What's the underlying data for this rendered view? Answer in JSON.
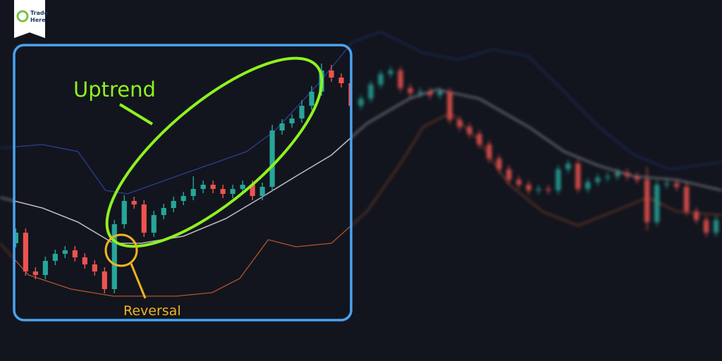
{
  "logo": {
    "lines": [
      "Trade",
      "Here"
    ]
  },
  "chart_data": {
    "type": "candlestick",
    "up_color": "#26a69a",
    "down_color": "#ef5350",
    "xlim": [
      -0.6,
      72.6
    ],
    "ylim": [
      0,
      512
    ],
    "annotations": [
      "Uptrend",
      "Reversal"
    ],
    "open": [
      162,
      167,
      182,
      127,
      122,
      142,
      152,
      157,
      147,
      137,
      127,
      102,
      194,
      227,
      222,
      182,
      207,
      217,
      227,
      234,
      244,
      250,
      244,
      237,
      244,
      250,
      234,
      247,
      327,
      337,
      344,
      362,
      382,
      412,
      402,
      394,
      362,
      372,
      392,
      407,
      412,
      387,
      380,
      382,
      377,
      382,
      342,
      332,
      322,
      307,
      287,
      272,
      257,
      250,
      242,
      244,
      242,
      272,
      280,
      244,
      254,
      260,
      262,
      267,
      262,
      257,
      197,
      250,
      252,
      247,
      212,
      200,
      182
    ],
    "close": [
      167,
      182,
      127,
      122,
      142,
      152,
      157,
      147,
      137,
      127,
      102,
      194,
      227,
      222,
      182,
      207,
      217,
      227,
      234,
      244,
      250,
      244,
      237,
      244,
      250,
      234,
      247,
      327,
      337,
      344,
      362,
      382,
      412,
      402,
      394,
      362,
      372,
      392,
      407,
      412,
      387,
      380,
      382,
      377,
      382,
      342,
      332,
      322,
      307,
      287,
      272,
      257,
      250,
      242,
      244,
      242,
      272,
      280,
      244,
      254,
      260,
      262,
      267,
      262,
      257,
      197,
      250,
      252,
      247,
      212,
      200,
      182,
      200
    ],
    "high": [
      173,
      188,
      188,
      133,
      148,
      158,
      163,
      163,
      153,
      143,
      133,
      200,
      235,
      233,
      228,
      213,
      223,
      233,
      240,
      262,
      256,
      256,
      250,
      250,
      256,
      256,
      253,
      335,
      343,
      350,
      370,
      390,
      422,
      420,
      408,
      400,
      378,
      398,
      413,
      418,
      418,
      393,
      388,
      388,
      388,
      388,
      348,
      338,
      328,
      313,
      293,
      278,
      263,
      256,
      250,
      250,
      278,
      286,
      286,
      260,
      266,
      268,
      273,
      273,
      268,
      275,
      256,
      258,
      258,
      253,
      218,
      206,
      206
    ],
    "low": [
      156,
      161,
      121,
      116,
      116,
      136,
      146,
      141,
      131,
      121,
      96,
      96,
      188,
      216,
      176,
      176,
      201,
      211,
      221,
      228,
      238,
      238,
      231,
      231,
      238,
      228,
      228,
      241,
      321,
      331,
      338,
      356,
      376,
      396,
      388,
      356,
      356,
      366,
      386,
      401,
      381,
      374,
      374,
      371,
      371,
      336,
      326,
      316,
      301,
      281,
      266,
      251,
      244,
      236,
      236,
      236,
      236,
      266,
      238,
      238,
      248,
      254,
      256,
      256,
      251,
      185,
      191,
      244,
      241,
      206,
      194,
      176,
      176
    ],
    "lines": [
      {
        "color": "#2c3f8c",
        "x": [
          -0.6,
          3.7,
          7.3,
          10.1,
          12.3,
          17.3,
          24.4,
          27.3,
          31.6,
          35.1,
          38,
          42.3,
          45.9,
          49.4,
          53,
          56.6,
          60.1,
          63.7,
          67.3,
          72.6
        ],
        "values": [
          302,
          307,
          297,
          242,
          237,
          262,
          297,
          327,
          392,
          452,
          467,
          437,
          427,
          442,
          432,
          382,
          332,
          292,
          272,
          282
        ]
      },
      {
        "color": "#b9b9c0",
        "x": [
          -0.6,
          3.7,
          7.3,
          10.9,
          13.7,
          18,
          22.3,
          25.9,
          29.4,
          33,
          36.6,
          40.9,
          43.7,
          48,
          53,
          56.6,
          60.1,
          63.7,
          68,
          72.6
        ],
        "values": [
          232,
          217,
          197,
          167,
          167,
          177,
          202,
          232,
          262,
          292,
          337,
          372,
          385,
          372,
          332,
          297,
          277,
          262,
          257,
          242
        ]
      },
      {
        "color": "#b3532c",
        "x": [
          -0.6,
          2.3,
          6.6,
          10.9,
          13.7,
          17.3,
          20.9,
          23.7,
          26.6,
          29.4,
          33,
          36.6,
          40.1,
          42.3,
          45.1,
          48,
          50.9,
          54.4,
          58,
          61.6,
          65.1,
          68,
          72.6
        ],
        "values": [
          167,
          122,
          102,
          92,
          92,
          92,
          97,
          117,
          172,
          162,
          167,
          212,
          282,
          332,
          352,
          312,
          252,
          212,
          192,
          212,
          232,
          212,
          207
        ]
      }
    ]
  }
}
